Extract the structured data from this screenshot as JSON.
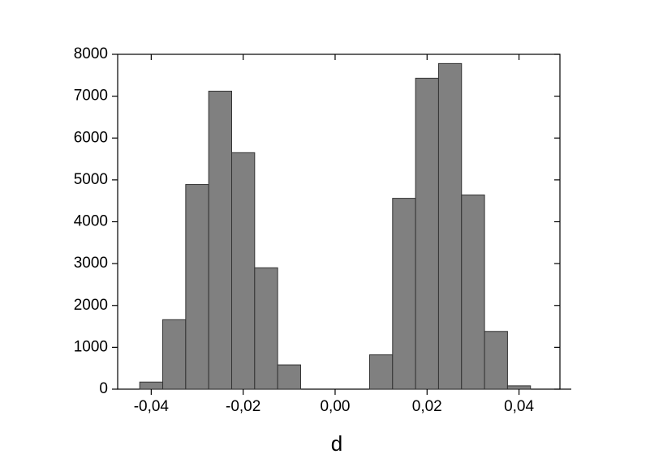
{
  "chart_data": {
    "type": "histogram",
    "x_label": "d",
    "bins": [
      -0.0425,
      -0.0375,
      -0.0325,
      -0.0275,
      -0.0225,
      -0.0175,
      -0.0125,
      -0.0075,
      -0.0025,
      0.0025,
      0.0075,
      0.0125,
      0.0175,
      0.0225,
      0.0275,
      0.0325,
      0.0375,
      0.0425
    ],
    "values": [
      170,
      1660,
      4890,
      7120,
      5650,
      2900,
      580,
      0,
      0,
      0,
      820,
      4560,
      7430,
      7780,
      4640,
      1380,
      80
    ],
    "color": "#808080",
    "xlim": [
      -0.0473,
      0.0489
    ],
    "xticks": [
      {
        "value": -0.04,
        "label": "-0,04"
      },
      {
        "value": -0.02,
        "label": "-0,02"
      },
      {
        "value": 0,
        "label": "0,00"
      },
      {
        "value": 0.02,
        "label": "0,02"
      },
      {
        "value": 0.04,
        "label": "0,04"
      }
    ],
    "ylim": [
      0,
      8000
    ],
    "yticks": [
      0,
      1000,
      2000,
      3000,
      4000,
      5000,
      6000,
      7000,
      8000
    ],
    "grid": false
  }
}
